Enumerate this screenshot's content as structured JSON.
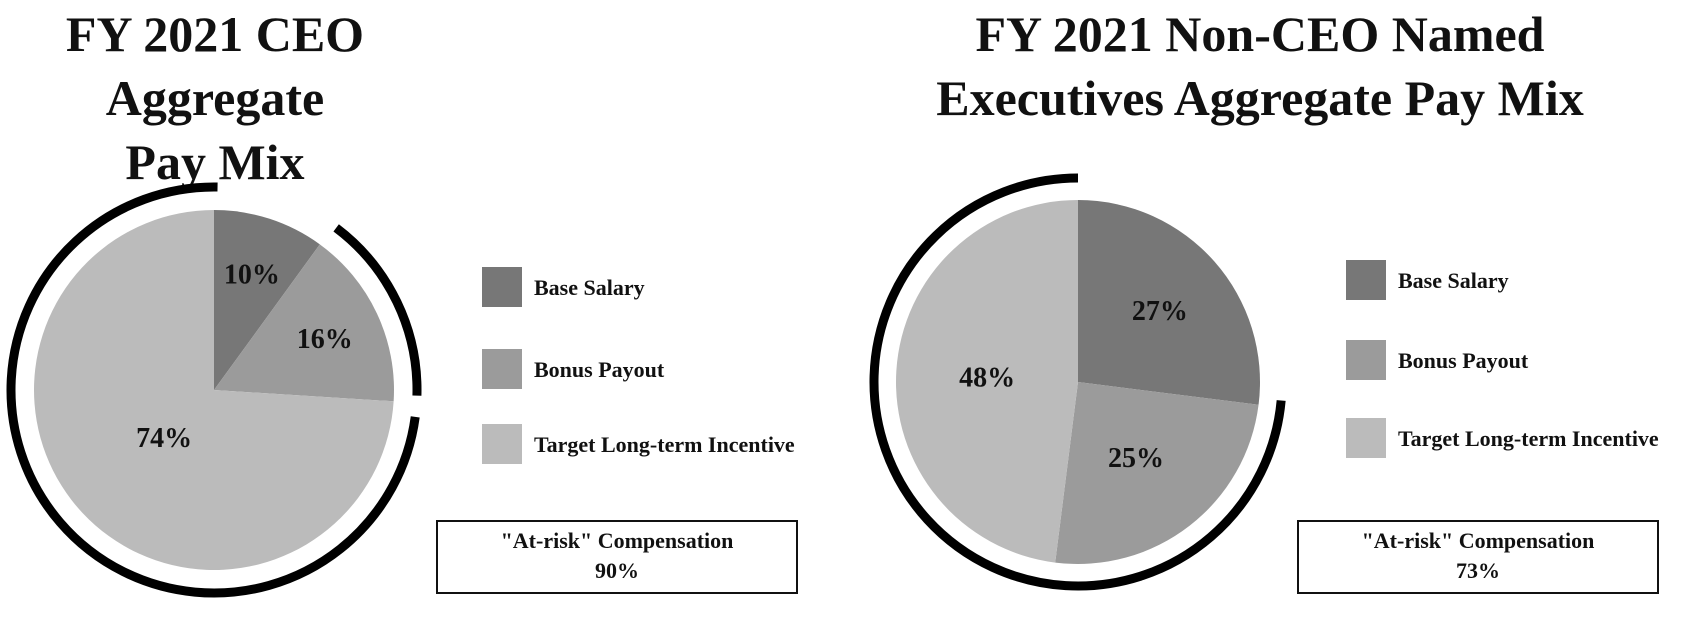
{
  "colors": {
    "base_salary": "#777777",
    "bonus_payout": "#9b9b9b",
    "target_lti": "#bbbbbb",
    "ring": "#000000"
  },
  "chart_data": [
    {
      "type": "pie",
      "title_lines": [
        "FY 2021 CEO Aggregate",
        "Pay Mix"
      ],
      "legend": [
        "Base Salary",
        "Bonus Payout",
        "Target Long-term Incentive"
      ],
      "slices": [
        {
          "name": "Base Salary",
          "value": 10,
          "label": "10%"
        },
        {
          "name": "Bonus Payout",
          "value": 16,
          "label": "16%"
        },
        {
          "name": "Target Long-term Incentive",
          "value": 74,
          "label": "74%"
        }
      ],
      "at_risk": {
        "label": "\"At-risk\" Compensation",
        "value": "90%"
      }
    },
    {
      "type": "pie",
      "title_lines": [
        "FY 2021 Non-CEO Named",
        "Executives Aggregate Pay Mix"
      ],
      "legend": [
        "Base Salary",
        "Bonus Payout",
        "Target Long-term Incentive"
      ],
      "slices": [
        {
          "name": "Base Salary",
          "value": 27,
          "label": "27%"
        },
        {
          "name": "Bonus Payout",
          "value": 25,
          "label": "25%"
        },
        {
          "name": "Target Long-term Incentive",
          "value": 48,
          "label": "48%"
        }
      ],
      "at_risk": {
        "label": "\"At-risk\" Compensation",
        "value": "73%"
      }
    }
  ]
}
